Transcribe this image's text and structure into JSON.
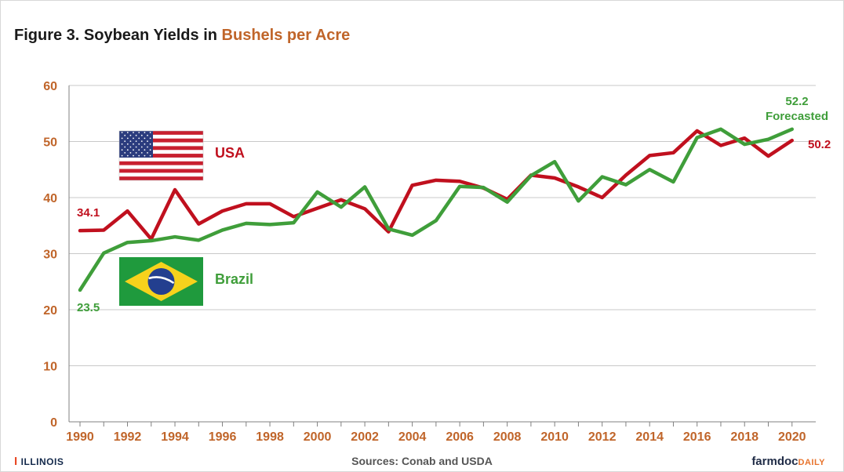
{
  "title": {
    "prefix": "Figure 3. Soybean Yields in ",
    "accent": "Bushels per Acre"
  },
  "colors": {
    "usa": "#c0101e",
    "brazil": "#3f9e3a",
    "axis_text": "#c0652a",
    "grid": "#c8c8c8",
    "axis": "#808080"
  },
  "chart_data": {
    "type": "line",
    "x": [
      1990,
      1991,
      1992,
      1993,
      1994,
      1995,
      1996,
      1997,
      1998,
      1999,
      2000,
      2001,
      2002,
      2003,
      2004,
      2005,
      2006,
      2007,
      2008,
      2009,
      2010,
      2011,
      2012,
      2013,
      2014,
      2015,
      2016,
      2017,
      2018,
      2019,
      2020
    ],
    "ylim": [
      0,
      60
    ],
    "yticks": [
      0,
      10,
      20,
      30,
      40,
      50,
      60
    ],
    "xtick_labels": [
      "1990",
      "1992",
      "1994",
      "1996",
      "1998",
      "2000",
      "2002",
      "2004",
      "2006",
      "2008",
      "2010",
      "2012",
      "2014",
      "2016",
      "2018",
      "2020"
    ],
    "grid": "horizontal",
    "series": [
      {
        "name": "USA",
        "color": "#c0101e",
        "values": [
          34.1,
          34.2,
          37.6,
          32.6,
          41.4,
          35.3,
          37.6,
          38.9,
          38.9,
          36.6,
          38.1,
          39.6,
          38.0,
          33.9,
          42.2,
          43.1,
          42.9,
          41.7,
          39.7,
          44.0,
          43.5,
          41.9,
          40.0,
          44.0,
          47.5,
          48.0,
          51.9,
          49.3,
          50.6,
          47.4,
          50.2
        ]
      },
      {
        "name": "Brazil",
        "color": "#3f9e3a",
        "values": [
          23.5,
          30.1,
          32.0,
          32.3,
          33.0,
          32.4,
          34.2,
          35.4,
          35.2,
          35.5,
          41.0,
          38.3,
          41.9,
          34.4,
          33.3,
          35.9,
          42.0,
          41.8,
          39.2,
          43.9,
          46.4,
          39.4,
          43.7,
          42.3,
          45.0,
          42.8,
          50.7,
          52.2,
          49.5,
          50.4,
          52.2
        ]
      }
    ],
    "annotations": {
      "usa_start": "34.1",
      "brazil_start": "23.5",
      "usa_end": "50.2",
      "brazil_end": "52.2",
      "forecast": "Forecasted"
    },
    "legend_labels": {
      "usa": "USA",
      "brazil": "Brazil"
    }
  },
  "footer": {
    "sources": "Sources: Conab and USDA",
    "illinois_logo": "I",
    "illinois": "ILLINOIS",
    "farmdoc": "farmdoc",
    "daily": "DAILY"
  },
  "icons": {
    "usa_flag": "usa-flag-icon",
    "brazil_flag": "brazil-flag-icon"
  }
}
